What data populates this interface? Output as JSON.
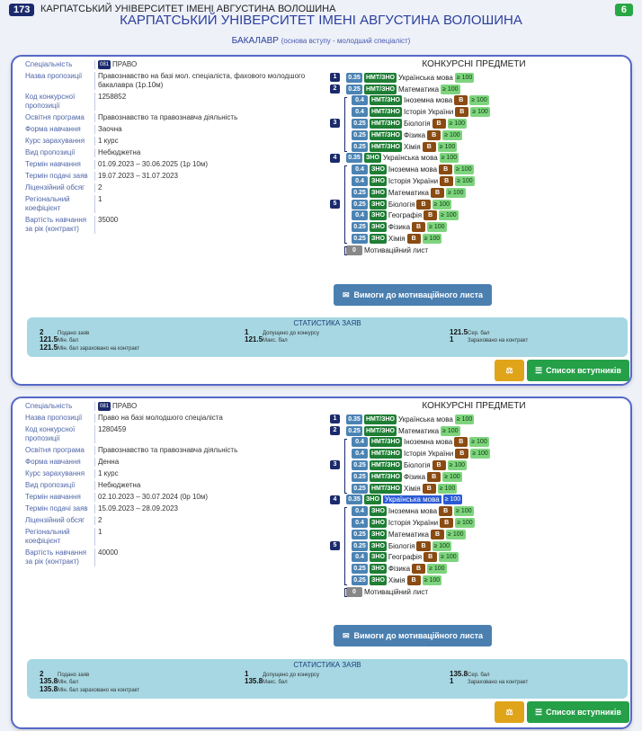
{
  "header": {
    "uni_badge": "173",
    "uni_small": "КАРПАТСЬКИЙ УНІВЕРСИТЕТ ІМЕНІ АВГУСТИНА ВОЛОШИНА",
    "count_badge": "6",
    "uni_title": "КАРПАТСЬКИЙ УНІВЕРСИТЕТ ІМЕНІ АВГУСТИНА ВОЛОШИНА",
    "degree": "БАКАЛАВР",
    "degree_sub": "(основа вступу - молодший спеціаліст)"
  },
  "labels": {
    "specialty": "Спеціальність",
    "offer_name": "Назва пропозиції",
    "offer_code": "Код конкурсної пропозиції",
    "program": "Освітня програма",
    "study_form": "Форма навчання",
    "course": "Курс зарахування",
    "offer_type": "Вид пропозиції",
    "study_term": "Термін навчання",
    "apply_term": "Термін подачі заяв",
    "license": "Ліцензійний обсяг",
    "regional": "Регіональний коефіцієнт",
    "price": "Вартість навчання за рік (контракт)",
    "subjects_title": "КОНКУРСНІ ПРЕДМЕТИ",
    "motiv_letter": "Мотиваційний лист",
    "motiv_btn": "Вимоги до мотиваційного листа",
    "stats_title": "СТАТИСТИКА ЗАЯВ",
    "stat_apps": "Подано заяв",
    "stat_min": "Мін. бал",
    "stat_min_enrolled": "Мін. бал зараховано на контракт",
    "stat_admitted": "Допущено до конкурсу",
    "stat_max": "Макс. бал",
    "stat_avg": "Сер. бал",
    "stat_enrolled": "Зараховано на контракт",
    "list_btn": "Список вступників",
    "exam_nmt": "НМТ/ЗНО",
    "exam_zno": "ЗНО",
    "b_label": "В"
  },
  "offers": [
    {
      "spec_code": "081",
      "specialty": "ПРАВО",
      "offer_name": "Правознавство на базі мол. спеціаліста, фахового молодшого бакалавра (1р.10м)",
      "offer_code": "1258852",
      "program": "Правознавство та правознавча діяльність",
      "study_form": "Заочна",
      "course": "1 курс",
      "offer_type": "Небюджетна",
      "study_term": "01.09.2023 – 30.06.2025 (1р 10м)",
      "apply_term": "19.07.2023 – 31.07.2023",
      "license": "2",
      "regional": "1",
      "price": "35000",
      "nmt": [
        {
          "g": "1",
          "w": "0.35",
          "name": "Українська мова",
          "min": "≥ 100"
        },
        {
          "g": "2",
          "w": "0.25",
          "name": "Математика",
          "min": "≥ 100"
        },
        {
          "w": "0.4",
          "name": "Іноземна мова",
          "b": true,
          "min": "≥ 100"
        },
        {
          "w": "0.4",
          "name": "Історія України",
          "b": true,
          "min": "≥ 100"
        },
        {
          "g": "3",
          "w": "0.25",
          "name": "Біологія",
          "b": true,
          "min": "≥ 100"
        },
        {
          "w": "0.25",
          "name": "Фізика",
          "b": true,
          "min": "≥ 100"
        },
        {
          "w": "0.25",
          "name": "Хімія",
          "b": true,
          "min": "≥ 100"
        }
      ],
      "zno": [
        {
          "g": "4",
          "w": "0.35",
          "name": "Українська мова",
          "min": "≥ 100"
        },
        {
          "w": "0.4",
          "name": "Іноземна мова",
          "b": true,
          "min": "≥ 100"
        },
        {
          "w": "0.4",
          "name": "Історія України",
          "b": true,
          "min": "≥ 100"
        },
        {
          "w": "0.25",
          "name": "Математика",
          "b": true,
          "min": "≥ 100"
        },
        {
          "g": "5",
          "w": "0.25",
          "name": "Біологія",
          "b": true,
          "min": "≥ 100"
        },
        {
          "w": "0.4",
          "name": "Географія",
          "b": true,
          "min": "≥ 100"
        },
        {
          "w": "0.25",
          "name": "Фізика",
          "b": true,
          "min": "≥ 100"
        },
        {
          "w": "0.25",
          "name": "Хімія",
          "b": true,
          "min": "≥ 100"
        }
      ],
      "motiv_weight": "0",
      "stats": {
        "apps": "2",
        "min": "121.5",
        "min_enrolled": "121.5",
        "admitted": "1",
        "max": "121.5",
        "avg": "121.5",
        "enrolled": "1"
      }
    },
    {
      "spec_code": "081",
      "specialty": "ПРАВО",
      "offer_name": "Право на базі молодшого спеціаліста",
      "offer_code": "1280459",
      "program": "Правознавство та правознавча діяльність",
      "study_form": "Денна",
      "course": "1 курс",
      "offer_type": "Небюджетна",
      "study_term": "02.10.2023 – 30.07.2024 (0р 10м)",
      "apply_term": "15.09.2023 – 28.09.2023",
      "license": "2",
      "regional": "1",
      "price": "40000",
      "nmt": [
        {
          "g": "1",
          "w": "0.35",
          "name": "Українська мова",
          "min": "≥ 100"
        },
        {
          "g": "2",
          "w": "0.25",
          "name": "Математика",
          "min": "≥ 100"
        },
        {
          "w": "0.4",
          "name": "Іноземна мова",
          "b": true,
          "min": "≥ 100"
        },
        {
          "w": "0.4",
          "name": "Історія України",
          "b": true,
          "min": "≥ 100"
        },
        {
          "g": "3",
          "w": "0.25",
          "name": "Біологія",
          "b": true,
          "min": "≥ 100"
        },
        {
          "w": "0.25",
          "name": "Фізика",
          "b": true,
          "min": "≥ 100"
        },
        {
          "w": "0.25",
          "name": "Хімія",
          "b": true,
          "min": "≥ 100"
        }
      ],
      "zno": [
        {
          "g": "4",
          "w": "0.35",
          "name": "Українська мова",
          "min": "≥ 100",
          "hl": true
        },
        {
          "w": "0.4",
          "name": "Іноземна мова",
          "b": true,
          "min": "≥ 100"
        },
        {
          "w": "0.4",
          "name": "Історія України",
          "b": true,
          "min": "≥ 100"
        },
        {
          "w": "0.25",
          "name": "Математика",
          "b": true,
          "min": "≥ 100"
        },
        {
          "g": "5",
          "w": "0.25",
          "name": "Біологія",
          "b": true,
          "min": "≥ 100"
        },
        {
          "w": "0.4",
          "name": "Географія",
          "b": true,
          "min": "≥ 100"
        },
        {
          "w": "0.25",
          "name": "Фізика",
          "b": true,
          "min": "≥ 100"
        },
        {
          "w": "0.25",
          "name": "Хімія",
          "b": true,
          "min": "≥ 100"
        }
      ],
      "motiv_weight": "0",
      "stats": {
        "apps": "2",
        "min": "135.8",
        "min_enrolled": "135.8",
        "admitted": "1",
        "max": "135.8",
        "avg": "135.8",
        "enrolled": "1"
      }
    }
  ],
  "colors": {
    "accent": "#2a3f9d",
    "green": "#25a048",
    "brown": "#8a4b12",
    "steel": "#4a7fb0"
  }
}
